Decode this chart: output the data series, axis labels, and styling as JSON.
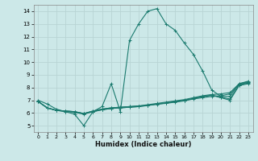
{
  "xlabel": "Humidex (Indice chaleur)",
  "line_color": "#1a7a6e",
  "background_color": "#cce8e8",
  "grid_color": "#b8d4d4",
  "xlim": [
    -0.5,
    23.5
  ],
  "ylim": [
    4.5,
    14.5
  ],
  "yticks": [
    5,
    6,
    7,
    8,
    9,
    10,
    11,
    12,
    13,
    14
  ],
  "xticks": [
    0,
    1,
    2,
    3,
    4,
    5,
    6,
    7,
    8,
    9,
    10,
    11,
    12,
    13,
    14,
    15,
    16,
    17,
    18,
    19,
    20,
    21,
    22,
    23
  ],
  "curve1_x": [
    0,
    1,
    2,
    3,
    4,
    5,
    6,
    7,
    8,
    9,
    10,
    11,
    12,
    13,
    14,
    15,
    16,
    17,
    18,
    19,
    20,
    21,
    22,
    23
  ],
  "curve1_y": [
    7.0,
    6.7,
    6.3,
    6.1,
    5.9,
    5.0,
    6.1,
    6.5,
    8.3,
    6.1,
    11.7,
    13.0,
    14.0,
    14.2,
    13.0,
    12.5,
    11.5,
    10.6,
    9.3,
    7.8,
    7.3,
    7.3,
    8.3,
    8.5
  ],
  "curve2_x": [
    0,
    1,
    2,
    3,
    4,
    5,
    6,
    7,
    8,
    9,
    10,
    11,
    12,
    13,
    14,
    15,
    16,
    17,
    18,
    19,
    20,
    21,
    22,
    23
  ],
  "curve2_y": [
    6.9,
    6.4,
    6.2,
    6.15,
    6.1,
    5.95,
    6.15,
    6.3,
    6.4,
    6.45,
    6.5,
    6.55,
    6.6,
    6.7,
    6.75,
    6.85,
    6.95,
    7.1,
    7.2,
    7.3,
    7.35,
    7.5,
    8.25,
    8.4
  ],
  "curve3_x": [
    0,
    1,
    2,
    3,
    4,
    5,
    6,
    7,
    8,
    9,
    10,
    11,
    12,
    13,
    14,
    15,
    16,
    17,
    18,
    19,
    20,
    21,
    22,
    23
  ],
  "curve3_y": [
    6.9,
    6.4,
    6.2,
    6.15,
    6.1,
    5.95,
    6.15,
    6.3,
    6.4,
    6.45,
    6.5,
    6.55,
    6.65,
    6.75,
    6.85,
    6.95,
    7.05,
    7.2,
    7.35,
    7.45,
    7.5,
    7.6,
    8.3,
    8.45
  ],
  "curve4_x": [
    0,
    1,
    2,
    3,
    4,
    5,
    6,
    7,
    8,
    9,
    10,
    11,
    12,
    13,
    14,
    15,
    16,
    17,
    18,
    19,
    20,
    21,
    22,
    23
  ],
  "curve4_y": [
    6.9,
    6.4,
    6.2,
    6.15,
    6.1,
    5.95,
    6.1,
    6.25,
    6.35,
    6.4,
    6.45,
    6.5,
    6.6,
    6.7,
    6.8,
    6.9,
    7.0,
    7.15,
    7.3,
    7.4,
    7.25,
    7.1,
    8.2,
    8.35
  ],
  "curve5_x": [
    0,
    1,
    2,
    3,
    4,
    5,
    6,
    7,
    8,
    9,
    10,
    11,
    12,
    13,
    14,
    15,
    16,
    17,
    18,
    19,
    20,
    21,
    22,
    23
  ],
  "curve5_y": [
    6.9,
    6.4,
    6.2,
    6.1,
    6.05,
    5.9,
    6.1,
    6.25,
    6.35,
    6.4,
    6.45,
    6.5,
    6.58,
    6.68,
    6.78,
    6.88,
    6.98,
    7.13,
    7.28,
    7.38,
    7.2,
    7.0,
    8.15,
    8.3
  ]
}
